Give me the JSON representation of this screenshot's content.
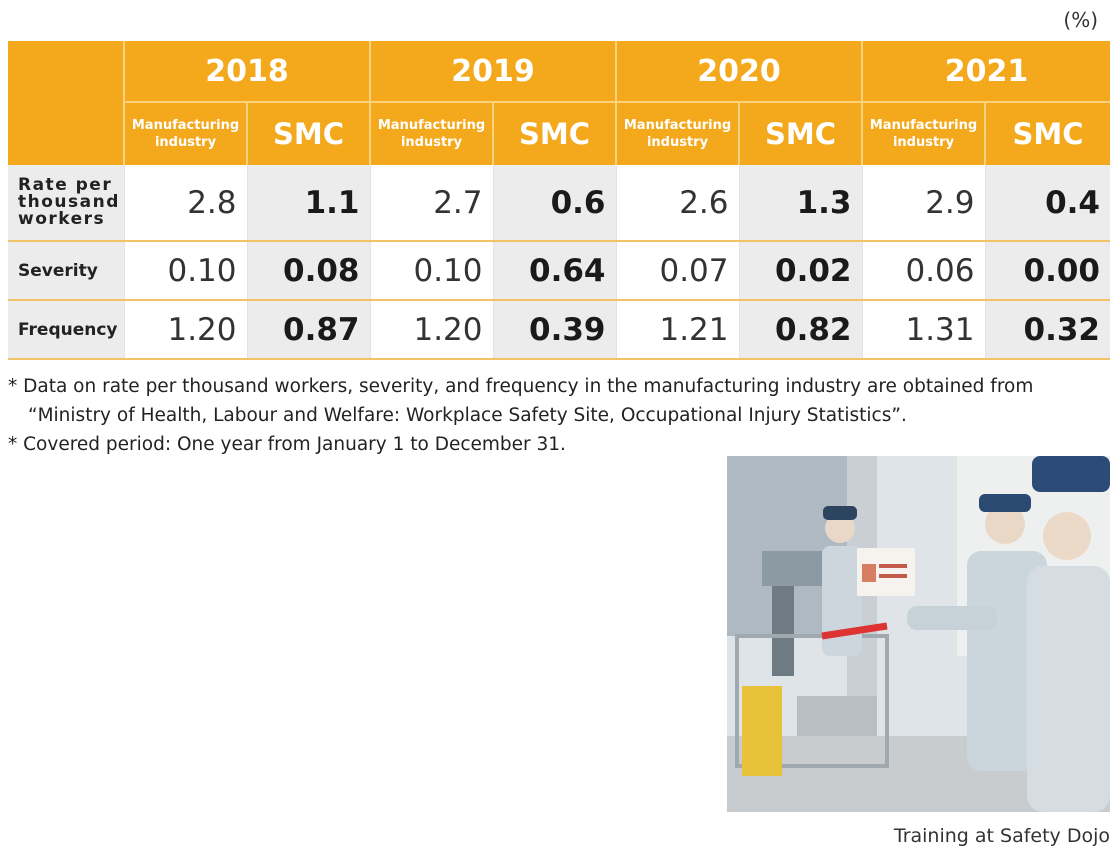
{
  "unit": "(%)",
  "table": {
    "years": [
      "2018",
      "2019",
      "2020",
      "2021"
    ],
    "sub_mfg": "Manufacturing industry",
    "sub_smc": "SMC",
    "rows": [
      {
        "label": "Rate per thousand workers",
        "mfg": [
          "2.8",
          "2.7",
          "2.6",
          "2.9"
        ],
        "smc": [
          "1.1",
          "0.6",
          "1.3",
          "0.4"
        ]
      },
      {
        "label": "Severity",
        "mfg": [
          "0.10",
          "0.10",
          "0.07",
          "0.06"
        ],
        "smc": [
          "0.08",
          "0.64",
          "0.02",
          "0.00"
        ]
      },
      {
        "label": "Frequency",
        "mfg": [
          "1.20",
          "1.20",
          "1.21",
          "1.31"
        ],
        "smc": [
          "0.87",
          "0.39",
          "0.82",
          "0.32"
        ]
      }
    ]
  },
  "notes": {
    "note1_line1": "* Data on rate per thousand workers, severity, and frequency in the manufacturing industry are obtained from",
    "note1_line2": "“Ministry of Health, Labour and Welfare: Workplace Safety Site, Occupational Injury Statistics”.",
    "note2": "* Covered period: One year from January 1 to December 31."
  },
  "photo_caption": "Training at Safety Dojo",
  "colors": {
    "header_orange": "#f4a81c",
    "row_gray": "#ececec"
  }
}
